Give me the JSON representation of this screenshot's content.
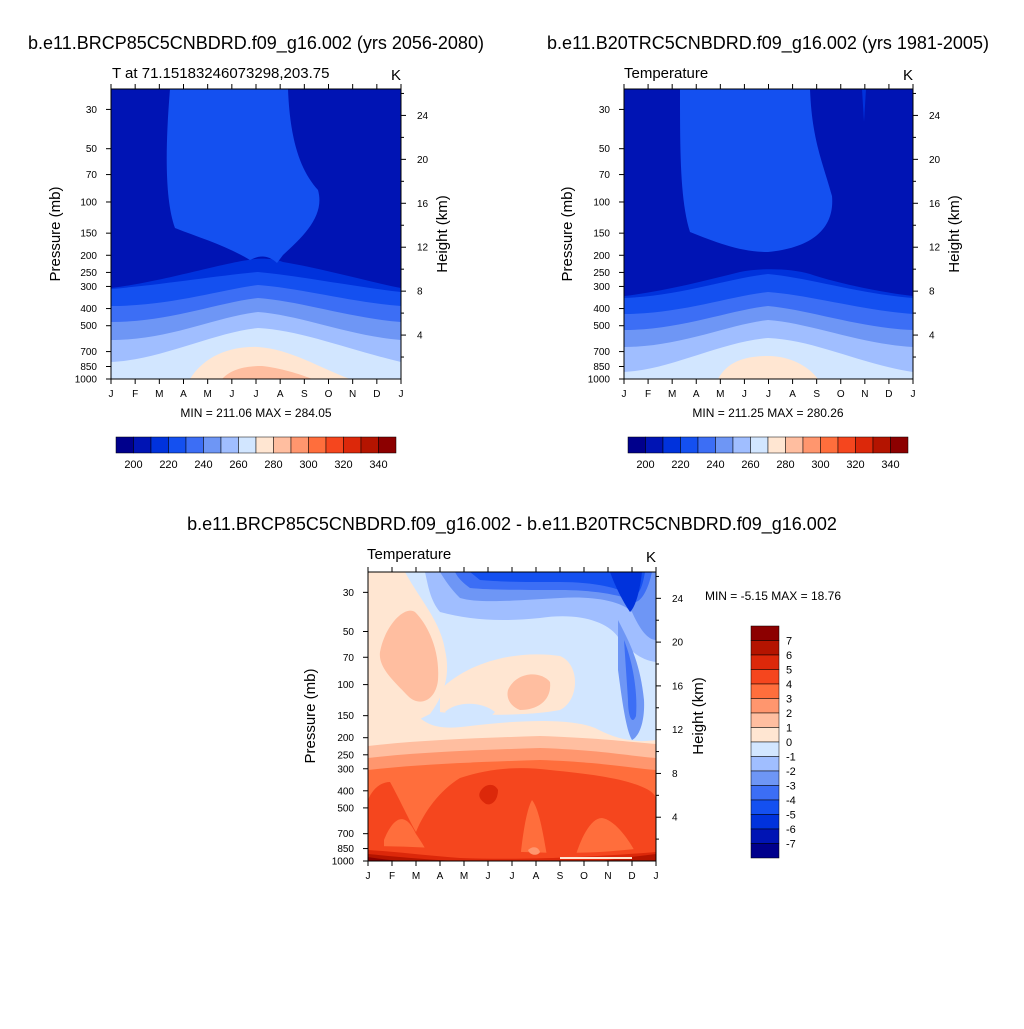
{
  "chart_data": [
    {
      "type": "contour",
      "title": "b.e11.BRCP85C5CNBDRD.f09_g16.002 (yrs 2056-2080)",
      "subtitle": "T at 71.15183246073298,203.75",
      "units": "K",
      "ylabel_left": "Pressure (mb)",
      "ylabel_right": "Height (km)",
      "x_ticks": [
        "J",
        "F",
        "M",
        "A",
        "M",
        "J",
        "J",
        "A",
        "S",
        "O",
        "N",
        "D",
        "J"
      ],
      "pressure_ticks": [
        30,
        50,
        70,
        100,
        150,
        200,
        250,
        300,
        400,
        500,
        700,
        850,
        1000
      ],
      "height_ticks": [
        24,
        20,
        16,
        12,
        8,
        4
      ],
      "stats": "MIN = 211.06 MAX = 284.05",
      "min": 211.06,
      "max": 284.05,
      "colorbar": {
        "labels": [
          "200",
          "220",
          "240",
          "260",
          "280",
          "300",
          "320",
          "340"
        ],
        "levels": [
          190,
          200,
          210,
          220,
          230,
          240,
          250,
          260,
          270,
          280,
          290,
          300,
          310,
          320,
          330,
          340,
          350
        ],
        "colors": [
          "#00008c",
          "#0014b4",
          "#0032dc",
          "#1450f0",
          "#3c6ef5",
          "#6e96f5",
          "#a0beff",
          "#d2e6ff",
          "#ffe6d2",
          "#ffbea0",
          "#ff966e",
          "#ff6e3c",
          "#f5461e",
          "#dc280a",
          "#b41400",
          "#8c0000"
        ]
      }
    },
    {
      "type": "contour",
      "title": "b.e11.B20TRC5CNBDRD.f09_g16.002 (yrs 1981-2005)",
      "subtitle": "Temperature",
      "units": "K",
      "ylabel_left": "Pressure (mb)",
      "ylabel_right": "Height (km)",
      "x_ticks": [
        "J",
        "F",
        "M",
        "A",
        "M",
        "J",
        "J",
        "A",
        "S",
        "O",
        "N",
        "D",
        "J"
      ],
      "pressure_ticks": [
        30,
        50,
        70,
        100,
        150,
        200,
        250,
        300,
        400,
        500,
        700,
        850,
        1000
      ],
      "height_ticks": [
        24,
        20,
        16,
        12,
        8,
        4
      ],
      "stats": "MIN = 211.25 MAX = 280.26",
      "min": 211.25,
      "max": 280.26,
      "colorbar": {
        "labels": [
          "200",
          "220",
          "240",
          "260",
          "280",
          "300",
          "320",
          "340"
        ]
      }
    },
    {
      "type": "contour",
      "title": "b.e11.BRCP85C5CNBDRD.f09_g16.002 - b.e11.B20TRC5CNBDRD.f09_g16.002",
      "subtitle": "Temperature",
      "units": "K",
      "ylabel_left": "Pressure (mb)",
      "ylabel_right": "Height (km)",
      "x_ticks": [
        "J",
        "F",
        "M",
        "A",
        "M",
        "J",
        "J",
        "A",
        "S",
        "O",
        "N",
        "D",
        "J"
      ],
      "pressure_ticks": [
        30,
        50,
        70,
        100,
        150,
        200,
        250,
        300,
        400,
        500,
        700,
        850,
        1000
      ],
      "height_ticks": [
        24,
        20,
        16,
        12,
        8,
        4
      ],
      "stats": "MIN =  -5.15 MAX =  18.76",
      "min": -5.15,
      "max": 18.76,
      "colorbar": {
        "labels": [
          "7",
          "6",
          "5",
          "4",
          "3",
          "2",
          "1",
          "0",
          "-1",
          "-2",
          "-3",
          "-4",
          "-5",
          "-6",
          "-7"
        ],
        "colors_top_to_bottom": [
          "#8c0000",
          "#b41400",
          "#dc280a",
          "#f5461e",
          "#ff6e3c",
          "#ff966e",
          "#ffbea0",
          "#ffe6d2",
          "#d2e6ff",
          "#a0beff",
          "#6e96f5",
          "#3c6ef5",
          "#1450f0",
          "#0032dc",
          "#0014b4",
          "#00008c"
        ]
      }
    }
  ]
}
